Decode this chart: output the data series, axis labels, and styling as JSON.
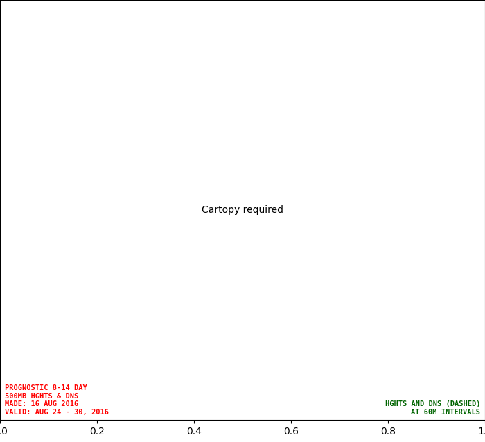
{
  "title_left": "PROGNOSTIC 8-14 DAY\n500MB HGHTS & DNS\nMADE: 16 AUG 2016\nVALID: AUG 24 - 30, 2016",
  "title_right": "HGHTS AND DNS (DASHED)\nAT 60M INTERVALS",
  "title_color": "#FF0000",
  "title_right_color": "#006400",
  "background_color": "#FFFFFF",
  "green_contour_color": "#008000",
  "blue_contour_color": "#4499FF",
  "red_contour_color": "#FF0000",
  "purple_contour_color": "#AA00AA",
  "coast_color": "#000000",
  "grid_color": "#888888",
  "label_color_heights": "#008000",
  "label_color_neg": "#4499FF",
  "label_color_pos": "#FF0000",
  "label_color_zero": "#AA00AA",
  "proj_lon": -100,
  "proj_lat": 60,
  "extent": [
    -160,
    -50,
    15,
    85
  ]
}
